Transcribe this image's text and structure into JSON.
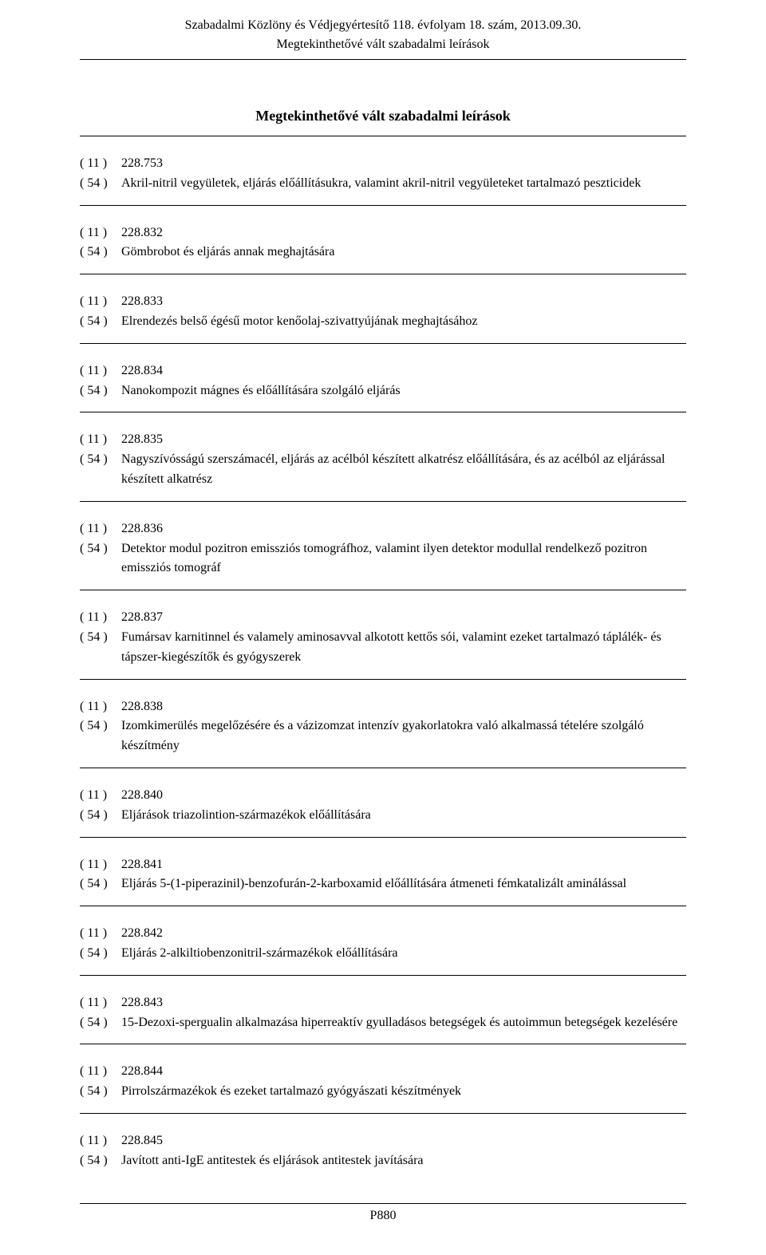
{
  "header": {
    "line1": "Szabadalmi Közlöny és Védjegyértesítő 118. évfolyam 18. szám, 2013.09.30.",
    "line2": "Megtekinthetővé vált szabadalmi leírások"
  },
  "section_title": "Megtekinthetővé vált szabadalmi leírások",
  "code_11": "( 11 )",
  "code_54": "( 54 )",
  "entries": [
    {
      "num": "228.753",
      "title": "Akril-nitril vegyületek, eljárás előállításukra, valamint akril-nitril vegyületeket tartalmazó peszticidek"
    },
    {
      "num": "228.832",
      "title": "Gömbrobot és eljárás annak meghajtására"
    },
    {
      "num": "228.833",
      "title": "Elrendezés belső égésű motor kenőolaj-szivattyújának meghajtásához"
    },
    {
      "num": "228.834",
      "title": "Nanokompozit mágnes és előállítására szolgáló eljárás"
    },
    {
      "num": "228.835",
      "title": "Nagyszívósságú szerszámacél, eljárás az acélból készített alkatrész előállítására, és az acélból az eljárással készített alkatrész"
    },
    {
      "num": "228.836",
      "title": "Detektor modul pozitron emissziós tomográfhoz, valamint ilyen detektor modullal rendelkező pozitron emissziós tomográf"
    },
    {
      "num": "228.837",
      "title": "Fumársav karnitinnel és valamely aminosavval alkotott kettős sói, valamint ezeket tartalmazó táplálék- és tápszer-kiegészítők és gyógyszerek"
    },
    {
      "num": "228.838",
      "title": "Izomkimerülés megelőzésére és a vázizomzat intenzív gyakorlatokra való alkalmassá tételére szolgáló készítmény"
    },
    {
      "num": "228.840",
      "title": "Eljárások triazolintion-származékok előállítására"
    },
    {
      "num": "228.841",
      "title": "Eljárás 5-(1-piperazinil)-benzofurán-2-karboxamid előállítására átmeneti fémkatalizált aminálással"
    },
    {
      "num": "228.842",
      "title": "Eljárás 2-alkiltiobenzonitril-származékok előállítására"
    },
    {
      "num": "228.843",
      "title": "15-Dezoxi-spergualin alkalmazása hiperreaktív gyulladásos betegségek és autoimmun betegségek kezelésére"
    },
    {
      "num": "228.844",
      "title": "Pirrolszármazékok és ezeket tartalmazó gyógyászati készítmények"
    },
    {
      "num": "228.845",
      "title": "Javított anti-IgE antitestek és eljárások antitestek javítására"
    }
  ],
  "page_number": "P880"
}
